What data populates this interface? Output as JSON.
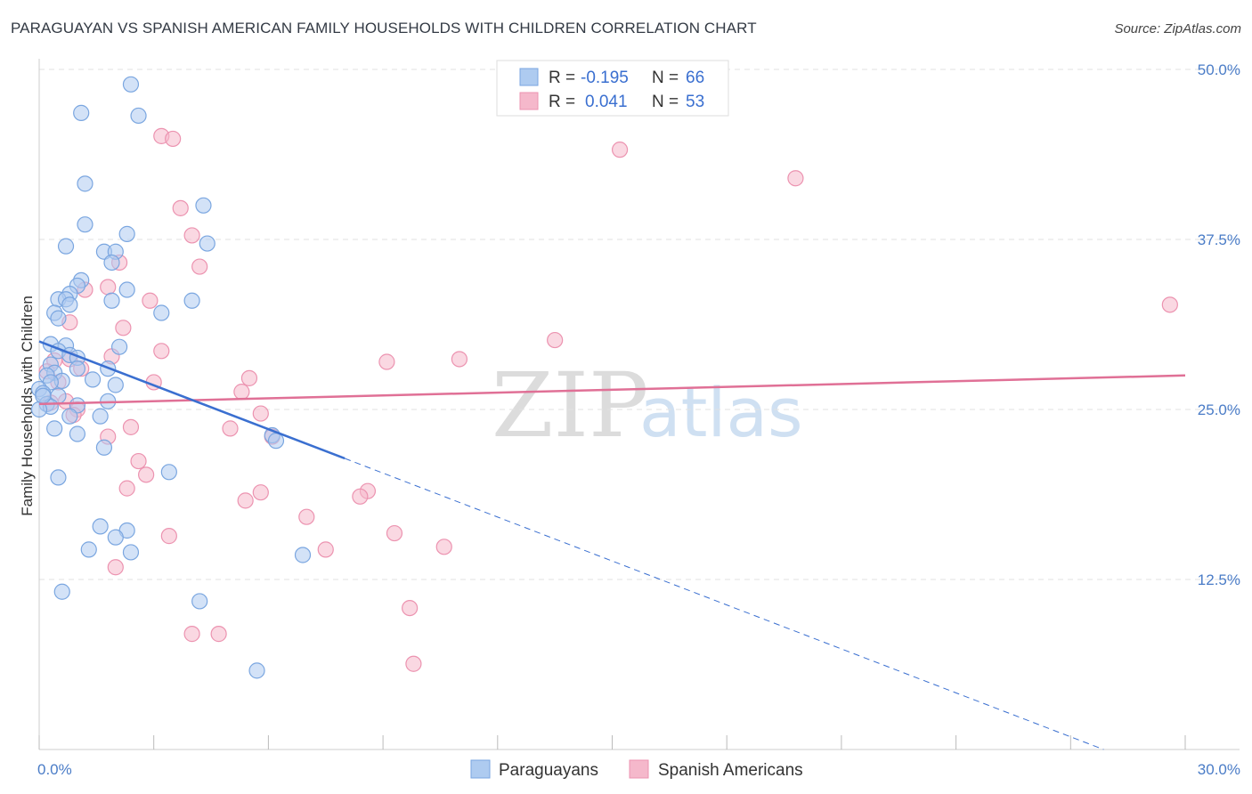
{
  "title": "PARAGUAYAN VS SPANISH AMERICAN FAMILY HOUSEHOLDS WITH CHILDREN CORRELATION CHART",
  "source": "Source: ZipAtlas.com",
  "watermark": {
    "zip": "ZIP",
    "atlas": "atlas"
  },
  "colors": {
    "blue_fill": "#aecbf0",
    "blue_stroke": "#7aa6e0",
    "blue_line": "#3a6fd0",
    "pink_fill": "#f5b8cb",
    "pink_stroke": "#ec93b0",
    "pink_line": "#e07096",
    "grid": "#e2e2e2",
    "tick_label": "#4a7cc7"
  },
  "legend": {
    "rows": [
      {
        "r_label": "R =",
        "r_value": "-0.195",
        "n_label": "N =",
        "n_value": "66"
      },
      {
        "r_label": "R =",
        "r_value": "0.041",
        "n_label": "N =",
        "n_value": "53"
      }
    ]
  },
  "chart_data": {
    "type": "scatter",
    "title": "PARAGUAYAN VS SPANISH AMERICAN FAMILY HOUSEHOLDS WITH CHILDREN CORRELATION CHART",
    "xlabel": "",
    "ylabel": "Family Households with Children",
    "xlim": [
      0,
      30
    ],
    "ylim": [
      0,
      50
    ],
    "x_tick_labels": [
      "0.0%",
      "30.0%"
    ],
    "y_ticks": [
      12.5,
      25.0,
      37.5,
      50.0
    ],
    "y_tick_labels": [
      "12.5%",
      "25.0%",
      "37.5%",
      "50.0%"
    ],
    "grid": true,
    "legend_position": "top-center",
    "series": [
      {
        "name": "Paraguayans",
        "trend": {
          "x": [
            0.0,
            8.0
          ],
          "y": [
            30.0,
            21.4
          ],
          "dashed_extension": {
            "x": [
              8.0,
              30.0
            ],
            "y": [
              21.4,
              -2.3
            ]
          }
        },
        "points": [
          [
            2.4,
            48.9
          ],
          [
            1.1,
            46.8
          ],
          [
            2.6,
            46.6
          ],
          [
            1.2,
            41.6
          ],
          [
            4.3,
            40.0
          ],
          [
            1.2,
            38.6
          ],
          [
            2.3,
            37.9
          ],
          [
            4.4,
            37.2
          ],
          [
            0.7,
            37.0
          ],
          [
            1.7,
            36.6
          ],
          [
            2.0,
            36.6
          ],
          [
            1.9,
            35.8
          ],
          [
            1.1,
            34.5
          ],
          [
            1.0,
            34.1
          ],
          [
            2.3,
            33.8
          ],
          [
            0.8,
            33.5
          ],
          [
            0.5,
            33.1
          ],
          [
            0.7,
            33.1
          ],
          [
            1.9,
            33.0
          ],
          [
            0.8,
            32.7
          ],
          [
            4.0,
            33.0
          ],
          [
            0.4,
            32.1
          ],
          [
            3.2,
            32.1
          ],
          [
            0.5,
            31.7
          ],
          [
            0.3,
            29.8
          ],
          [
            0.7,
            29.7
          ],
          [
            2.1,
            29.6
          ],
          [
            0.5,
            29.3
          ],
          [
            0.8,
            29.0
          ],
          [
            1.0,
            28.8
          ],
          [
            0.3,
            28.3
          ],
          [
            1.8,
            28.0
          ],
          [
            1.0,
            28.0
          ],
          [
            0.4,
            27.7
          ],
          [
            0.2,
            27.5
          ],
          [
            0.6,
            27.1
          ],
          [
            0.3,
            27.0
          ],
          [
            1.4,
            27.2
          ],
          [
            2.0,
            26.8
          ],
          [
            0.0,
            26.5
          ],
          [
            0.5,
            26.0
          ],
          [
            0.1,
            26.2
          ],
          [
            1.8,
            25.6
          ],
          [
            0.2,
            25.4
          ],
          [
            0.3,
            25.2
          ],
          [
            0.0,
            25.0
          ],
          [
            1.0,
            25.3
          ],
          [
            0.8,
            24.5
          ],
          [
            1.6,
            24.5
          ],
          [
            0.4,
            23.6
          ],
          [
            1.0,
            23.2
          ],
          [
            6.1,
            23.1
          ],
          [
            6.2,
            22.7
          ],
          [
            1.7,
            22.2
          ],
          [
            3.4,
            20.4
          ],
          [
            0.5,
            20.0
          ],
          [
            1.6,
            16.4
          ],
          [
            2.3,
            16.1
          ],
          [
            2.0,
            15.6
          ],
          [
            1.3,
            14.7
          ],
          [
            2.4,
            14.5
          ],
          [
            6.9,
            14.3
          ],
          [
            0.6,
            11.6
          ],
          [
            4.2,
            10.9
          ],
          [
            5.7,
            5.8
          ],
          [
            0.1,
            26.0
          ]
        ]
      },
      {
        "name": "Spanish Americans",
        "trend": {
          "x": [
            0.0,
            30.0
          ],
          "y": [
            25.4,
            27.5
          ]
        },
        "points": [
          [
            3.2,
            45.1
          ],
          [
            3.5,
            44.9
          ],
          [
            15.2,
            44.1
          ],
          [
            19.8,
            42.0
          ],
          [
            3.7,
            39.8
          ],
          [
            4.0,
            37.8
          ],
          [
            4.2,
            35.5
          ],
          [
            2.1,
            35.8
          ],
          [
            1.8,
            34.0
          ],
          [
            1.2,
            33.8
          ],
          [
            2.9,
            33.0
          ],
          [
            0.8,
            31.4
          ],
          [
            2.2,
            31.0
          ],
          [
            13.5,
            30.1
          ],
          [
            3.2,
            29.3
          ],
          [
            1.9,
            28.9
          ],
          [
            0.8,
            28.7
          ],
          [
            11.0,
            28.7
          ],
          [
            9.1,
            28.5
          ],
          [
            1.1,
            28.0
          ],
          [
            0.4,
            28.6
          ],
          [
            0.2,
            27.8
          ],
          [
            5.5,
            27.3
          ],
          [
            3.0,
            27.0
          ],
          [
            0.5,
            27.0
          ],
          [
            5.3,
            26.3
          ],
          [
            0.7,
            25.6
          ],
          [
            1.0,
            25.0
          ],
          [
            0.9,
            24.6
          ],
          [
            5.8,
            24.7
          ],
          [
            2.4,
            23.7
          ],
          [
            5.0,
            23.6
          ],
          [
            6.1,
            23.0
          ],
          [
            1.8,
            23.0
          ],
          [
            2.6,
            21.2
          ],
          [
            2.8,
            20.2
          ],
          [
            2.3,
            19.2
          ],
          [
            8.6,
            19.0
          ],
          [
            5.8,
            18.9
          ],
          [
            8.4,
            18.6
          ],
          [
            5.4,
            18.3
          ],
          [
            7.0,
            17.1
          ],
          [
            9.3,
            15.9
          ],
          [
            3.4,
            15.7
          ],
          [
            10.6,
            14.9
          ],
          [
            7.5,
            14.7
          ],
          [
            2.0,
            13.4
          ],
          [
            9.7,
            10.4
          ],
          [
            4.0,
            8.5
          ],
          [
            4.7,
            8.5
          ],
          [
            9.8,
            6.3
          ],
          [
            29.6,
            32.7
          ],
          [
            0.3,
            25.5
          ]
        ]
      }
    ]
  },
  "bottom_legend": {
    "items": [
      {
        "label": "Paraguayans"
      },
      {
        "label": "Spanish Americans"
      }
    ]
  }
}
